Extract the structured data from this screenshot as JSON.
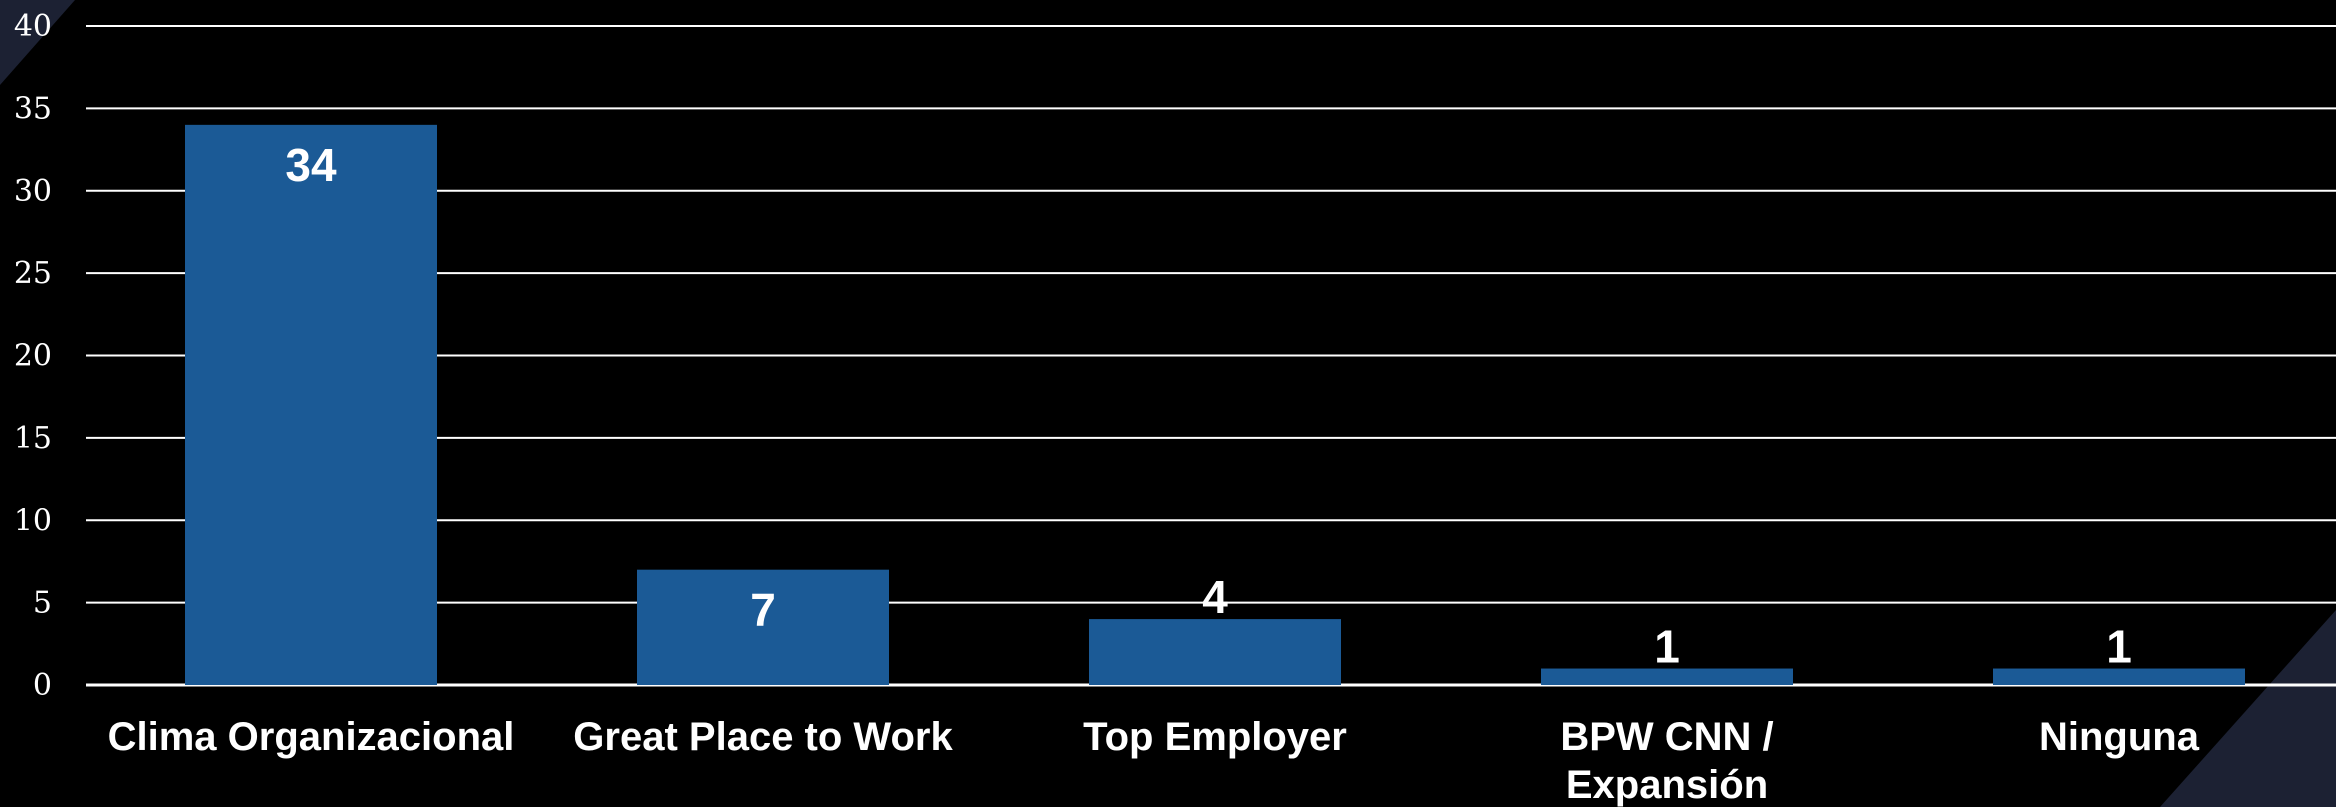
{
  "colors": {
    "background": "#000000",
    "bar": "#1b5a96",
    "grid": "#ffffff",
    "text": "#ffffff",
    "corner_accent": "#1c2133"
  },
  "chart_data": {
    "type": "bar",
    "categories": [
      "Clima Organizacional",
      "Great Place to Work",
      "Top Employer",
      "BPW CNN / Expansión",
      "Ninguna"
    ],
    "category_lines": [
      [
        "Clima Organizacional"
      ],
      [
        "Great Place to Work"
      ],
      [
        "Top Employer"
      ],
      [
        "BPW CNN /",
        "Expansión"
      ],
      [
        "Ninguna"
      ]
    ],
    "values": [
      34,
      7,
      4,
      1,
      1
    ],
    "data_labels": [
      "34",
      "7",
      "4",
      "1",
      "1"
    ],
    "ylim": [
      0,
      40
    ],
    "yticks": [
      0,
      5,
      10,
      15,
      20,
      25,
      30,
      35,
      40
    ],
    "ytick_labels": [
      "0",
      "5",
      "10",
      "15",
      "20",
      "25",
      "30",
      "35",
      "40"
    ],
    "grid": true,
    "legend": "none",
    "title": "",
    "xlabel": "",
    "ylabel": ""
  }
}
